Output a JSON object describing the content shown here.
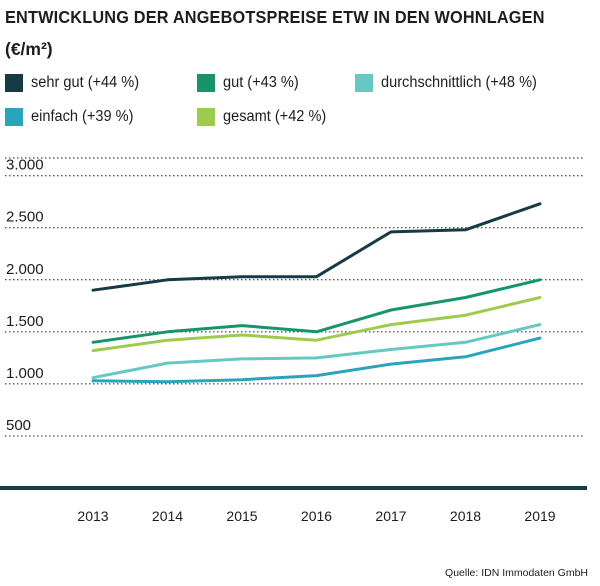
{
  "header": {
    "title": "ENTWICKLUNG DER ANGEBOTSPREISE ETW IN DEN WOHNLAGEN",
    "unit": "(€/m²)"
  },
  "legend": [
    {
      "label": "sehr gut (+44 %)",
      "color": "#163b45"
    },
    {
      "label": "gut (+43 %)",
      "color": "#16946a"
    },
    {
      "label": "durchschnittlich (+48 %)",
      "color": "#66c8c2"
    },
    {
      "label": "einfach (+39 %)",
      "color": "#2aa3bd"
    },
    {
      "label": "gesamt (+42 %)",
      "color": "#9ccb4e"
    }
  ],
  "chart_data": {
    "type": "line",
    "title": "ENTWICKLUNG DER ANGEBOTSPREISE ETW IN DEN WOHNLAGEN",
    "ylabel": "€/m²",
    "xlabel": "",
    "x": [
      "2013",
      "2014",
      "2015",
      "2016",
      "2017",
      "2018",
      "2019"
    ],
    "ylim": [
      0,
      3000
    ],
    "yticks": [
      500,
      1000,
      1500,
      2000,
      2500,
      3000
    ],
    "ytick_labels": [
      "500",
      "1.000",
      "1.500",
      "2.000",
      "2.500",
      "3.000"
    ],
    "grid": true,
    "series": [
      {
        "name": "sehr gut (+44 %)",
        "color": "#163b45",
        "values": [
          1900,
          2000,
          2030,
          2030,
          2460,
          2480,
          2730
        ]
      },
      {
        "name": "gut (+43 %)",
        "color": "#16946a",
        "values": [
          1400,
          1500,
          1560,
          1500,
          1710,
          1830,
          2000
        ]
      },
      {
        "name": "durchschnittlich (+48 %)",
        "color": "#66c8c2",
        "values": [
          1060,
          1200,
          1240,
          1250,
          1330,
          1400,
          1570
        ]
      },
      {
        "name": "einfach (+39 %)",
        "color": "#2aa3bd",
        "values": [
          1030,
          1020,
          1040,
          1080,
          1190,
          1260,
          1440
        ]
      },
      {
        "name": "gesamt (+42 %)",
        "color": "#9ccb4e",
        "values": [
          1320,
          1420,
          1470,
          1420,
          1570,
          1660,
          1830
        ]
      }
    ]
  },
  "footer": {
    "source": "Quelle: IDN Immodaten GmbH"
  }
}
